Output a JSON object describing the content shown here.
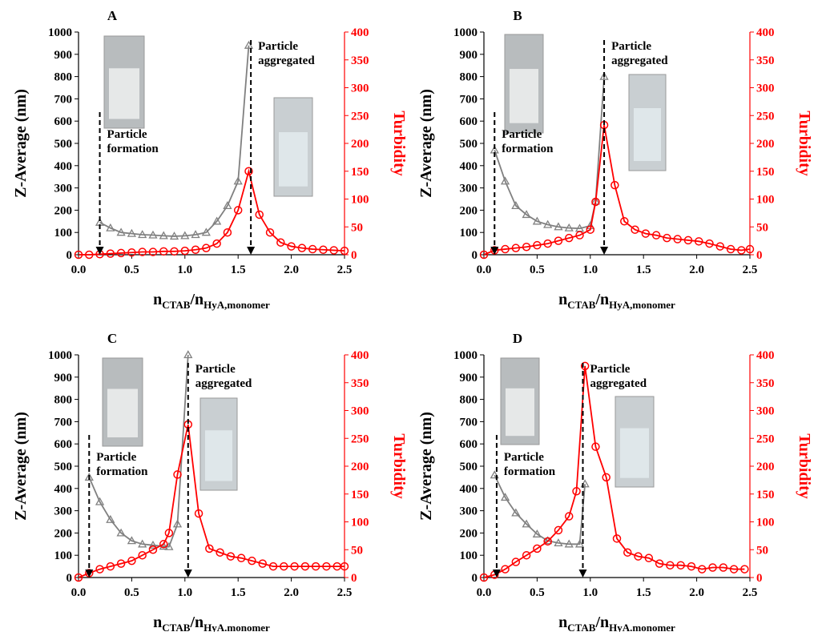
{
  "chart_data": [
    {
      "type": "line",
      "title": "A",
      "ylabel": "Z-Average (nm)",
      "y2label": "Turbidity",
      "xlabel_parts": [
        "n",
        "CTAB",
        "/n",
        "HyA,monomer"
      ],
      "xlim": [
        0,
        2.5
      ],
      "xticks": [
        {
          "value": 0,
          "label": "0.0"
        },
        0.5,
        {
          "value": 1,
          "label": "1.0"
        },
        1.5,
        {
          "value": 2,
          "label": "2.0"
        },
        2.5
      ],
      "ylim": [
        0,
        1000
      ],
      "yticks": [
        0,
        100,
        200,
        300,
        400,
        500,
        600,
        700,
        800,
        900,
        1000
      ],
      "y2lim": [
        0,
        400
      ],
      "y2ticks": [
        0,
        50,
        100,
        150,
        200,
        250,
        300,
        350,
        400
      ],
      "series": [
        {
          "color": "#808080",
          "axis": "y",
          "x": [
            0.2,
            0.3,
            0.4,
            0.5,
            0.6,
            0.7,
            0.8,
            0.9,
            1.0,
            1.1,
            1.2,
            1.3,
            1.4,
            1.5,
            1.6
          ],
          "values": [
            145,
            120,
            100,
            95,
            90,
            88,
            85,
            83,
            85,
            90,
            100,
            150,
            220,
            330,
            940
          ]
        },
        {
          "color": "#ff0000",
          "axis": "y2",
          "x": [
            0,
            0.1,
            0.2,
            0.3,
            0.4,
            0.5,
            0.6,
            0.7,
            0.8,
            0.9,
            1.0,
            1.1,
            1.2,
            1.3,
            1.4,
            1.5,
            1.6,
            1.7,
            1.8,
            1.9,
            2.0,
            2.1,
            2.2,
            2.3,
            2.4,
            2.5
          ],
          "values": [
            0,
            0,
            1,
            2,
            3,
            4,
            5,
            5,
            6,
            6,
            7,
            9,
            12,
            20,
            40,
            80,
            150,
            72,
            40,
            22,
            15,
            12,
            10,
            9,
            8,
            7
          ]
        }
      ],
      "annotations": [
        {
          "text": [
            "Particle",
            "formation"
          ],
          "x": 0.2
        },
        {
          "text": [
            "Particle",
            "aggregated"
          ],
          "x": 1.62
        }
      ]
    },
    {
      "type": "line",
      "title": "B",
      "ylabel": "Z-Average (nm)",
      "y2label": "Turbidity",
      "xlabel_parts": [
        "n",
        "CTAB",
        "/n",
        "HyA,monomer"
      ],
      "xlim": [
        0,
        2.5
      ],
      "xticks": [
        {
          "value": 0,
          "label": "0.0"
        },
        0.5,
        {
          "value": 1,
          "label": "1.0"
        },
        1.5,
        {
          "value": 2,
          "label": "2.0"
        },
        2.5
      ],
      "ylim": [
        0,
        1000
      ],
      "yticks": [
        0,
        100,
        200,
        300,
        400,
        500,
        600,
        700,
        800,
        900,
        1000
      ],
      "y2lim": [
        0,
        400
      ],
      "y2ticks": [
        0,
        50,
        100,
        150,
        200,
        250,
        300,
        350,
        400
      ],
      "series": [
        {
          "color": "#808080",
          "axis": "y",
          "x": [
            0.1,
            0.2,
            0.3,
            0.4,
            0.5,
            0.6,
            0.7,
            0.8,
            0.9,
            1.0,
            1.05,
            1.13
          ],
          "values": [
            470,
            330,
            220,
            180,
            150,
            135,
            125,
            120,
            118,
            130,
            240,
            800
          ]
        },
        {
          "color": "#ff0000",
          "axis": "y2",
          "x": [
            0,
            0.1,
            0.2,
            0.3,
            0.4,
            0.5,
            0.6,
            0.7,
            0.8,
            0.9,
            1.0,
            1.05,
            1.13,
            1.23,
            1.32,
            1.42,
            1.52,
            1.62,
            1.72,
            1.82,
            1.92,
            2.02,
            2.12,
            2.22,
            2.32,
            2.42,
            2.5
          ],
          "values": [
            0,
            8,
            10,
            12,
            14,
            17,
            20,
            25,
            30,
            35,
            45,
            95,
            233,
            125,
            60,
            45,
            38,
            35,
            30,
            28,
            26,
            24,
            20,
            15,
            10,
            8,
            10
          ]
        }
      ],
      "annotations": [
        {
          "text": [
            "Particle",
            "formation"
          ],
          "x": 0.1
        },
        {
          "text": [
            "Particle",
            "aggregated"
          ],
          "x": 1.13
        }
      ]
    },
    {
      "type": "line",
      "title": "C",
      "ylabel": "Z-Average (nm)",
      "y2label": "Turbidity",
      "xlabel_parts": [
        "n",
        "CTAB",
        "/n",
        "HyA.monomer"
      ],
      "xlim": [
        0,
        2.5
      ],
      "xticks": [
        {
          "value": 0,
          "label": "0.0"
        },
        0.5,
        {
          "value": 1,
          "label": "1.0"
        },
        1.5,
        {
          "value": 2,
          "label": "2.0"
        },
        2.5
      ],
      "ylim": [
        0,
        1000
      ],
      "yticks": [
        0,
        100,
        200,
        300,
        400,
        500,
        600,
        700,
        800,
        900,
        1000
      ],
      "y2lim": [
        0,
        400
      ],
      "y2ticks": [
        0,
        50,
        100,
        150,
        200,
        250,
        300,
        350,
        400
      ],
      "series": [
        {
          "color": "#808080",
          "axis": "y",
          "x": [
            0.1,
            0.2,
            0.3,
            0.4,
            0.5,
            0.6,
            0.7,
            0.8,
            0.85,
            0.93,
            1.03
          ],
          "values": [
            450,
            340,
            260,
            200,
            165,
            150,
            145,
            140,
            138,
            240,
            1000
          ]
        },
        {
          "color": "#ff0000",
          "axis": "y2",
          "x": [
            0,
            0.1,
            0.2,
            0.3,
            0.4,
            0.5,
            0.6,
            0.7,
            0.8,
            0.85,
            0.93,
            1.03,
            1.13,
            1.23,
            1.33,
            1.43,
            1.53,
            1.63,
            1.73,
            1.83,
            1.93,
            2.03,
            2.13,
            2.23,
            2.33,
            2.43,
            2.5
          ],
          "values": [
            0,
            8,
            15,
            20,
            25,
            30,
            40,
            50,
            60,
            80,
            185,
            275,
            115,
            52,
            45,
            38,
            35,
            30,
            25,
            20,
            20,
            20,
            20,
            20,
            20,
            20,
            20
          ]
        }
      ],
      "annotations": [
        {
          "text": [
            "Particle",
            "formation"
          ],
          "x": 0.1
        },
        {
          "text": [
            "Particle",
            "aggregated"
          ],
          "x": 1.03
        }
      ]
    },
    {
      "type": "line",
      "title": "D",
      "ylabel": "Z-Average (nm)",
      "y2label": "Turbidity",
      "xlabel_parts": [
        "n",
        "CTAB",
        "/n",
        "HyA.monomer"
      ],
      "xlim": [
        0,
        2.5
      ],
      "xticks": [
        {
          "value": 0,
          "label": "0.0"
        },
        0.5,
        {
          "value": 1,
          "label": "1.0"
        },
        1.5,
        {
          "value": 2,
          "label": "2.0"
        },
        2.5
      ],
      "ylim": [
        0,
        1000
      ],
      "yticks": [
        0,
        100,
        200,
        300,
        400,
        500,
        600,
        700,
        800,
        900,
        1000
      ],
      "y2lim": [
        0,
        400
      ],
      "y2ticks": [
        0,
        50,
        100,
        150,
        200,
        250,
        300,
        350,
        400
      ],
      "series": [
        {
          "color": "#808080",
          "axis": "y",
          "x": [
            0.1,
            0.2,
            0.3,
            0.4,
            0.5,
            0.6,
            0.7,
            0.8,
            0.9,
            0.95
          ],
          "values": [
            460,
            360,
            290,
            240,
            195,
            165,
            155,
            150,
            150,
            420
          ]
        },
        {
          "color": "#ff0000",
          "axis": "y2",
          "x": [
            0,
            0.1,
            0.2,
            0.3,
            0.4,
            0.5,
            0.6,
            0.7,
            0.8,
            0.87,
            0.95,
            1.05,
            1.15,
            1.25,
            1.35,
            1.45,
            1.55,
            1.65,
            1.75,
            1.85,
            1.95,
            2.05,
            2.15,
            2.25,
            2.35,
            2.45
          ],
          "values": [
            0,
            5,
            15,
            28,
            40,
            52,
            65,
            85,
            110,
            155,
            380,
            235,
            180,
            70,
            45,
            38,
            35,
            25,
            22,
            22,
            20,
            15,
            18,
            18,
            15,
            15
          ]
        }
      ],
      "annotations": [
        {
          "text": [
            "Particle",
            "formation"
          ],
          "x": 0.12
        },
        {
          "text": [
            "Particle",
            "aggregated"
          ],
          "x": 0.93
        }
      ]
    }
  ]
}
